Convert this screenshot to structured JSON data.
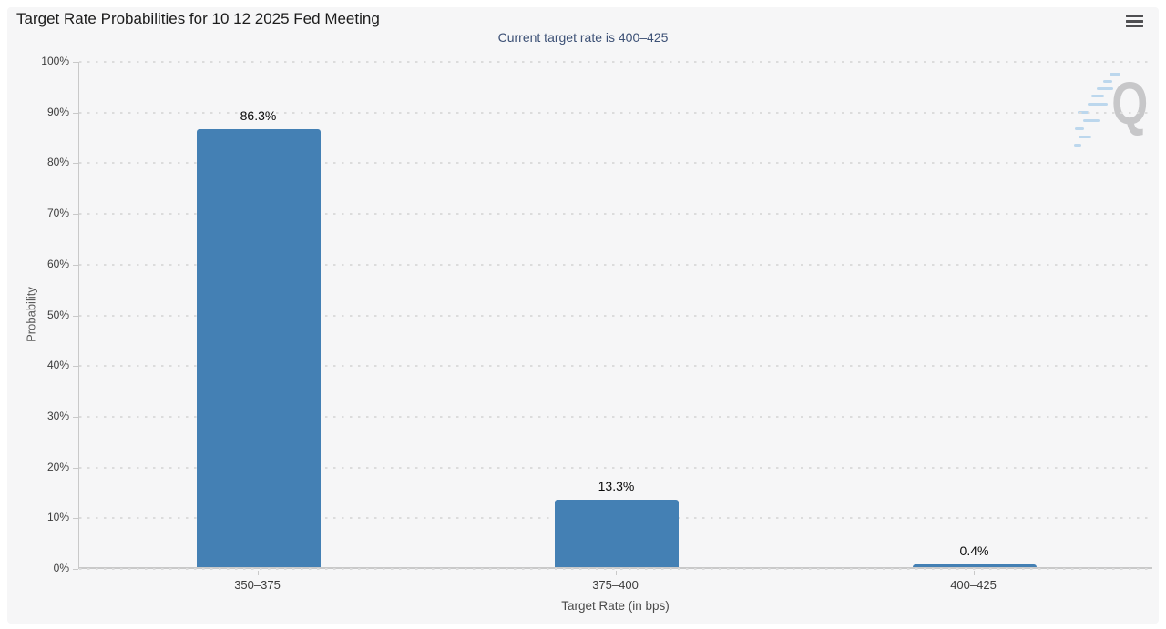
{
  "header": {
    "title": "Target Rate Probabilities for 10 12 2025 Fed Meeting"
  },
  "subtitle": "Current target rate is 400–425",
  "watermark": {
    "letter": "Q"
  },
  "colors": {
    "bar": "#4480b4",
    "subtitle_text": "#3d5176",
    "axis_line": "#c9c9c9",
    "grid_dot": "#dcdcdc",
    "panel_background": "#f6f6f7"
  },
  "chart_data": {
    "type": "bar",
    "title": "Target Rate Probabilities for 10 12 2025 Fed Meeting",
    "subtitle": "Current target rate is 400–425",
    "categories": [
      "350–375",
      "375–400",
      "400–425"
    ],
    "values": [
      86.3,
      13.3,
      0.4
    ],
    "value_labels": [
      "86.3%",
      "13.3%",
      "0.4%"
    ],
    "xlabel": "Target Rate (in bps)",
    "ylabel": "Probability",
    "ylim": [
      0,
      100
    ],
    "yticks": [
      "0%",
      "10%",
      "20%",
      "30%",
      "40%",
      "50%",
      "60%",
      "70%",
      "80%",
      "90%",
      "100%"
    ],
    "grid": "dotted-horizontal",
    "legend": "none",
    "bar_color": "#4480b4"
  }
}
